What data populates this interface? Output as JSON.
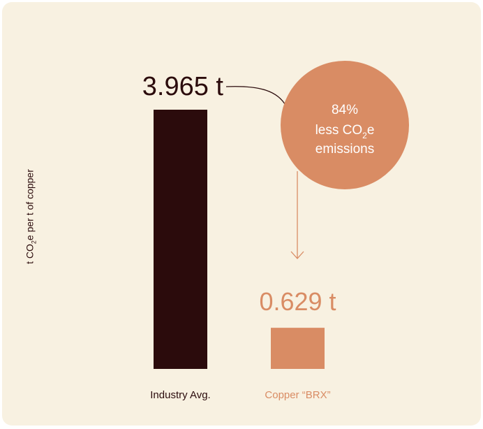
{
  "chart_data": {
    "type": "bar",
    "ylabel": "t CO2e per t of copper",
    "ylabel_main": "t CO",
    "ylabel_sub": "2",
    "ylabel_rest": "e per t of copper",
    "categories": [
      "Industry Avg.",
      "Copper “BRX”"
    ],
    "values": [
      3.965,
      0.629
    ],
    "value_labels": [
      "3.965 t",
      "0.629 t"
    ],
    "colors": [
      "#2b0b0c",
      "#d98c64"
    ],
    "annotation": {
      "line1": "84%",
      "line2_main": "less CO",
      "line2_sub": "2",
      "line2_rest": "e",
      "line3": "emissions"
    }
  },
  "colors": {
    "background": "#f8f1e1",
    "circle": "#d98c64",
    "circle_text": "#ffffff",
    "connector": "#2b0b0c",
    "arrow": "#d98c64"
  }
}
